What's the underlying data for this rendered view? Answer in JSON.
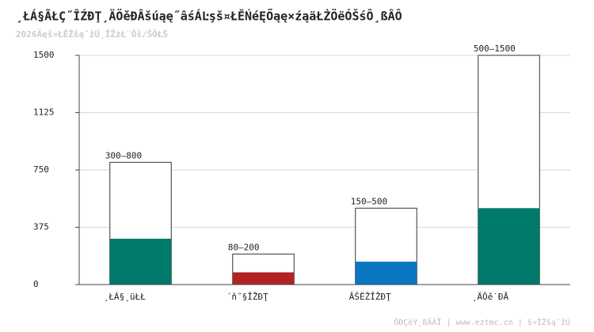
{
  "chart_data": {
    "type": "range-bar",
    "title": "¸ŁÁ§ÃŁÇ˝ÎŹĐŢ¸ÄÖěĐÂšúąę˝âśÁĿşš¤ŁĚŃéĘŐąę×źąäŁŻÖëÓŠśÔ¸ßÂÔ",
    "subtitle": "2026Äęš¤ŁĚŽšąˇžÚ¸ÎŽżŁ¨Ôš/ŠÖŁŠ",
    "categories": [
      "¸ŁÁ§¸üŁŁ",
      "´ň˝§ÎŽĐŢ",
      "ÂŠËŽÎŽĐŢ",
      "¸ÄÔě˙ĐÂ"
    ],
    "low": [
      300,
      80,
      150,
      500
    ],
    "high": [
      800,
      200,
      500,
      1500
    ],
    "value_labels": [
      "300–800",
      "80–200",
      "150–500",
      "500–1500"
    ],
    "colors": [
      "#007a6a",
      "#b22222",
      "#0a77c0",
      "#007a6a"
    ],
    "ylim": [
      0,
      1500
    ],
    "yticks": [
      0,
      375,
      750,
      1125,
      1500
    ],
    "grid": true,
    "footer": "ÖĐÇëÝ¸ßÄÁÎ | www.eztmc.cn | š¤ÌŽšąˇžÚ"
  }
}
